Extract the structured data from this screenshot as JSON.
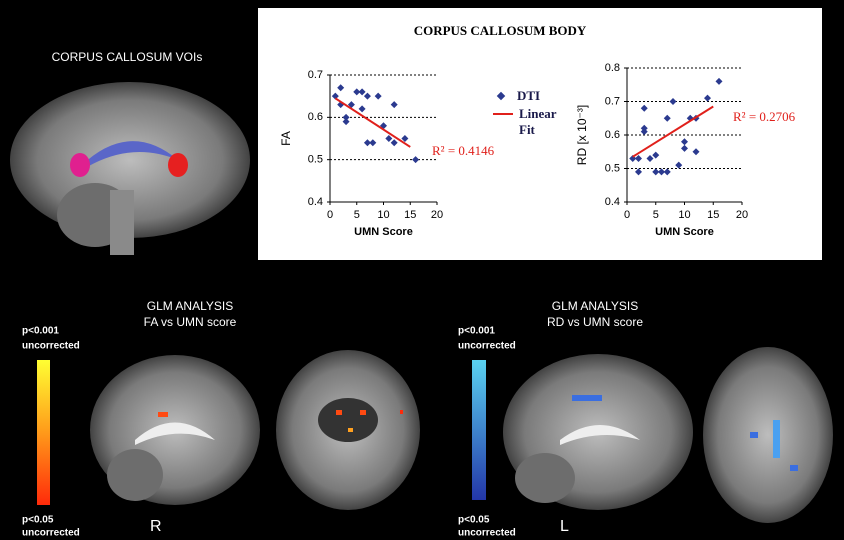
{
  "chart_data": [
    {
      "type": "scatter",
      "title": "CORPUS CALLOSUM BODY",
      "x_label": "UMN Score",
      "y_label": "FA",
      "xlim": [
        0,
        20
      ],
      "xticks": [
        0,
        5,
        10,
        15,
        20
      ],
      "ylim": [
        0.4,
        0.7
      ],
      "yticks": [
        0.4,
        0.5,
        0.6,
        0.7
      ],
      "grid": true,
      "legend": true,
      "annotation": "R² = 0.4146",
      "series": [
        {
          "name": "DTI",
          "color": "#2b3a8f",
          "x": [
            1,
            2,
            2,
            3,
            3,
            4,
            5,
            6,
            6,
            7,
            7,
            8,
            9,
            10,
            11,
            12,
            12,
            14,
            16
          ],
          "values": [
            0.65,
            0.67,
            0.63,
            0.6,
            0.59,
            0.63,
            0.66,
            0.66,
            0.62,
            0.65,
            0.54,
            0.54,
            0.65,
            0.58,
            0.55,
            0.63,
            0.54,
            0.55,
            0.5
          ]
        },
        {
          "name": "Linear Fit",
          "color": "#e0201b",
          "line": true,
          "x": [
            1,
            15
          ],
          "values": [
            0.645,
            0.53
          ]
        }
      ]
    },
    {
      "type": "scatter",
      "x_label": "UMN Score",
      "y_label": "RD [x 10⁻³]",
      "xlim": [
        0,
        20
      ],
      "xticks": [
        0,
        5,
        10,
        15,
        20
      ],
      "ylim": [
        0.4,
        0.8
      ],
      "yticks": [
        0.4,
        0.5,
        0.6,
        0.7,
        0.8
      ],
      "grid": true,
      "legend": false,
      "annotation": "R² = 0.2706",
      "series": [
        {
          "color": "#2b3a8f",
          "x": [
            1,
            2,
            2,
            3,
            3,
            3,
            4,
            5,
            5,
            6,
            7,
            7,
            8,
            9,
            10,
            10,
            11,
            12,
            12,
            14,
            16
          ],
          "values": [
            0.53,
            0.53,
            0.49,
            0.62,
            0.61,
            0.68,
            0.53,
            0.54,
            0.49,
            0.49,
            0.65,
            0.49,
            0.7,
            0.51,
            0.58,
            0.56,
            0.65,
            0.55,
            0.65,
            0.71,
            0.76
          ]
        },
        {
          "color": "#e0201b",
          "line": true,
          "x": [
            1,
            15
          ],
          "values": [
            0.535,
            0.685
          ]
        }
      ]
    }
  ],
  "panels": {
    "voi_title": "CORPUS CALLOSUM VOIs",
    "glm_fa": {
      "title": "GLM ANALYSIS",
      "subtitle": "FA vs UMN score",
      "p_high": "p<0.001",
      "p_high_note": "uncorrected",
      "p_low": "p<0.05",
      "p_low_note": "uncorrected",
      "side": "R"
    },
    "glm_rd": {
      "title": "GLM ANALYSIS",
      "subtitle": "RD vs UMN score",
      "p_high": "p<0.001",
      "p_high_note": "uncorrected",
      "p_low": "p<0.05",
      "p_low_note": "uncorrected",
      "side": "L"
    }
  }
}
